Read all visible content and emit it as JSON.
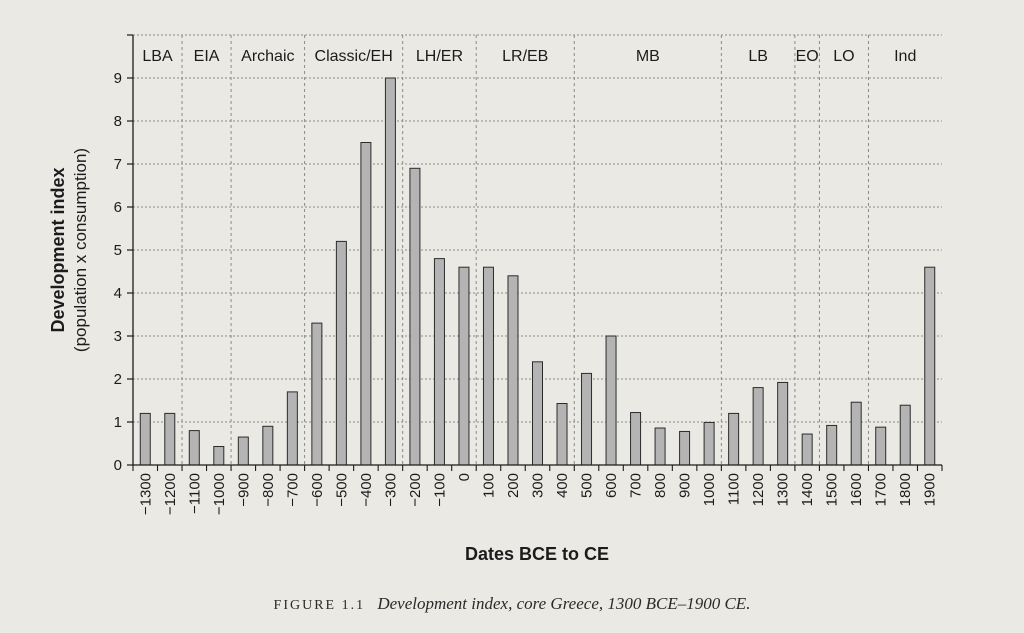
{
  "chart_data": {
    "type": "bar",
    "ylabel": "Development index",
    "ylabel_sub": "(population x consumption)",
    "xlabel": "Dates BCE to CE",
    "ylim": [
      0,
      10
    ],
    "yticks": [
      0,
      1,
      2,
      3,
      4,
      5,
      6,
      7,
      8,
      9
    ],
    "grid": true,
    "categories": [
      "−1300",
      "−1200",
      "−1100",
      "−1000",
      "−900",
      "−800",
      "−700",
      "−600",
      "−500",
      "−400",
      "−300",
      "−200",
      "−100",
      "0",
      "100",
      "200",
      "300",
      "400",
      "500",
      "600",
      "700",
      "800",
      "900",
      "1000",
      "1100",
      "1200",
      "1300",
      "1400",
      "1500",
      "1600",
      "1700",
      "1800",
      "1900"
    ],
    "values": [
      1.2,
      1.2,
      0.8,
      0.43,
      0.65,
      0.9,
      1.7,
      3.3,
      5.2,
      7.5,
      9.0,
      6.9,
      4.8,
      4.6,
      4.6,
      4.4,
      2.4,
      1.43,
      2.13,
      3.0,
      1.22,
      0.86,
      0.78,
      0.99,
      1.2,
      1.8,
      1.92,
      0.72,
      0.92,
      1.46,
      0.88,
      1.39,
      4.6
    ],
    "periods": [
      {
        "label": "LBA",
        "from": -1300,
        "to": -1200
      },
      {
        "label": "EIA",
        "from": -1100,
        "to": -1000
      },
      {
        "label": "Archaic",
        "from": -900,
        "to": -700
      },
      {
        "label": "Classic/EH",
        "from": -600,
        "to": -300
      },
      {
        "label": "LH/ER",
        "from": -200,
        "to": 0
      },
      {
        "label": "LR/EB",
        "from": 100,
        "to": 400
      },
      {
        "label": "MB",
        "from": 500,
        "to": 1000
      },
      {
        "label": "LB",
        "from": 1100,
        "to": 1300
      },
      {
        "label": "EO",
        "from": 1400,
        "to": 1400
      },
      {
        "label": "LO",
        "from": 1500,
        "to": 1600
      },
      {
        "label": "Ind",
        "from": 1700,
        "to": 1900
      }
    ],
    "period_boundaries": [
      -1150,
      -950,
      -650,
      -250,
      50,
      450,
      1050,
      1350,
      1450,
      1650
    ]
  },
  "caption": {
    "figure_label": "FIGURE 1.1",
    "text": "Development index, core Greece, 1300 BCE–1900 CE."
  },
  "colors": {
    "bar_fill": "#b4b4b4",
    "bar_stroke": "#2b2b2b",
    "grid": "#8a8a8a",
    "axis": "#1c1c1c"
  }
}
